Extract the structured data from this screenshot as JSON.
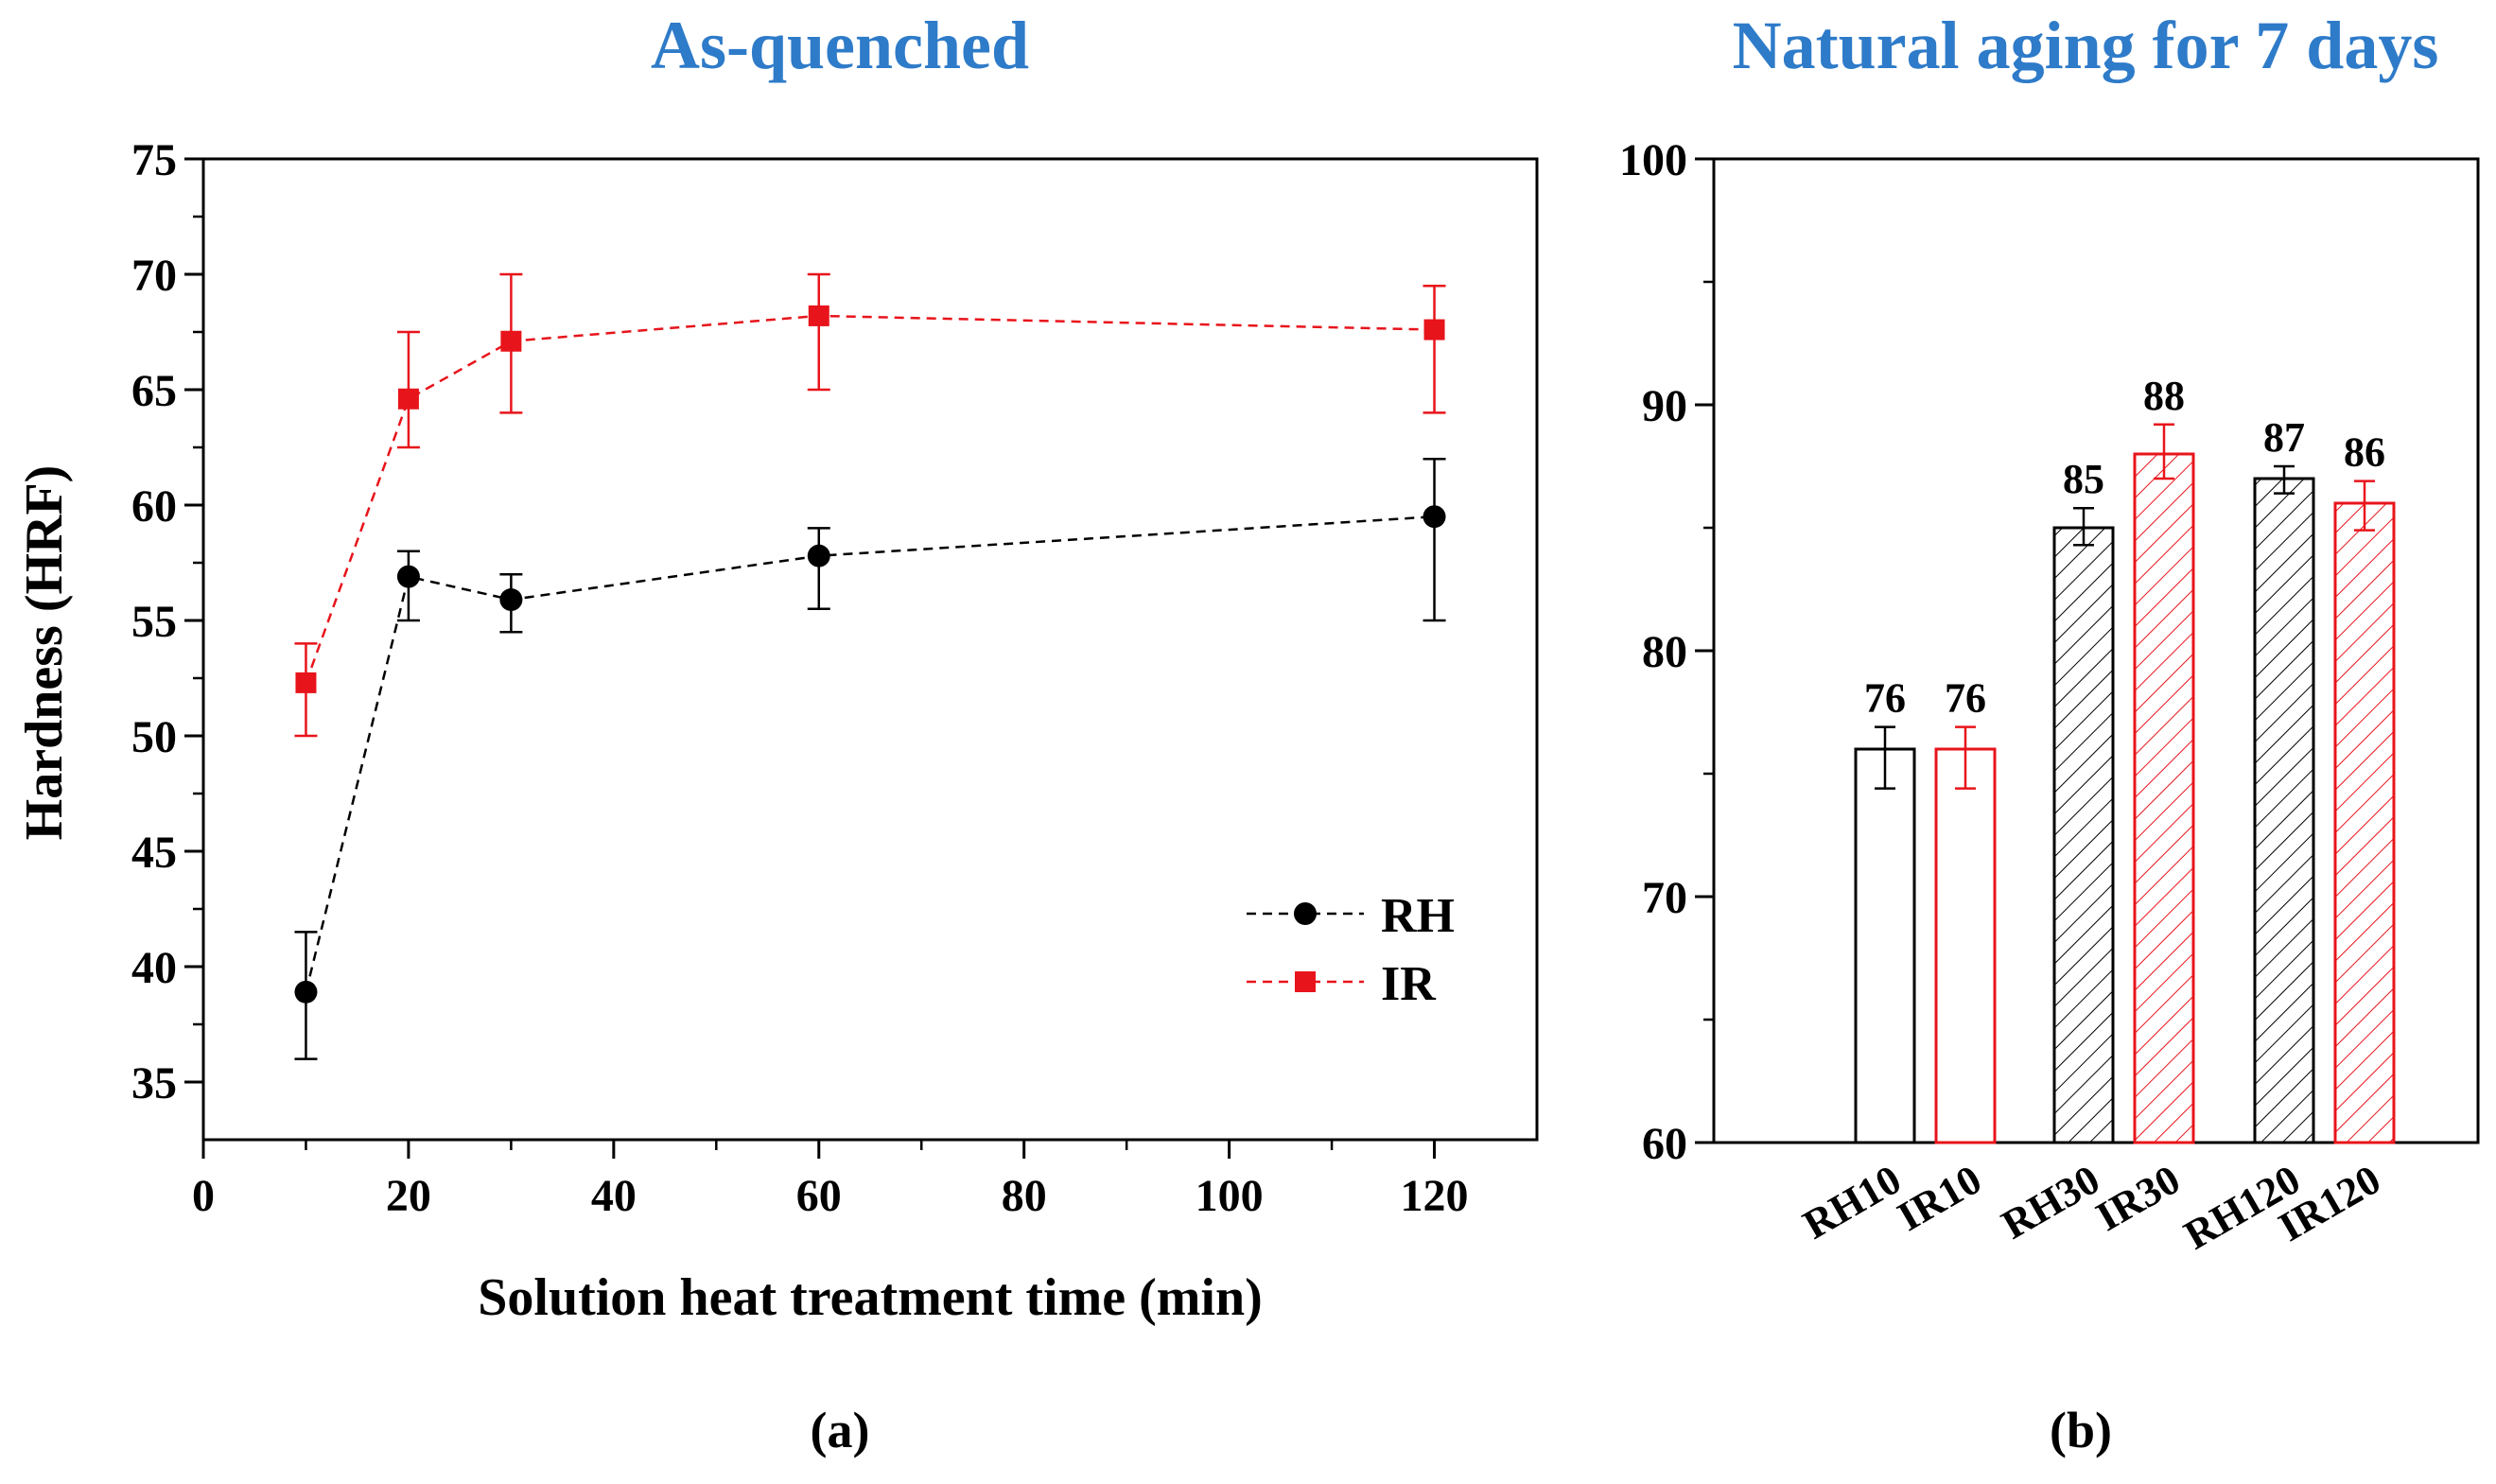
{
  "colors": {
    "title": "#2E7BC9",
    "rh": "#000000",
    "ir": "#E8141B",
    "axis": "#000000"
  },
  "chart_data": [
    {
      "panel_label": "(a)",
      "type": "line",
      "title": "As-quenched",
      "xlabel": "Solution heat treatment time (min)",
      "ylabel": "Hardness (HRF)",
      "xlim": [
        0,
        130
      ],
      "ylim": [
        32.5,
        75
      ],
      "xticks": [
        0,
        20,
        40,
        60,
        80,
        100,
        120
      ],
      "yticks": [
        35,
        40,
        45,
        50,
        55,
        60,
        65,
        70,
        75
      ],
      "grid": false,
      "legend_position": "bottom-right",
      "x": [
        10,
        20,
        30,
        60,
        120
      ],
      "series": [
        {
          "name": "RH",
          "marker": "circle",
          "line": "dashed",
          "color": "#000000",
          "values": [
            38.9,
            56.9,
            55.9,
            57.8,
            59.5
          ],
          "err_low": [
            36.0,
            55.0,
            54.5,
            55.5,
            55.0
          ],
          "err_high": [
            41.5,
            58.0,
            57.0,
            59.0,
            62.0
          ]
        },
        {
          "name": "IR",
          "marker": "square",
          "line": "dashed",
          "color": "#E8141B",
          "values": [
            52.3,
            64.6,
            67.1,
            68.2,
            67.6
          ],
          "err_low": [
            50.0,
            62.5,
            64.0,
            65.0,
            64.0
          ],
          "err_high": [
            54.0,
            67.5,
            70.0,
            70.0,
            69.5
          ]
        }
      ]
    },
    {
      "panel_label": "(b)",
      "type": "bar",
      "title": "Natural aging for 7 days",
      "ylim": [
        60,
        100
      ],
      "yticks": [
        60,
        70,
        80,
        90,
        100
      ],
      "grid": false,
      "categories": [
        "RH10",
        "IR10",
        "RH30",
        "IR30",
        "RH120",
        "IR120"
      ],
      "values": [
        76,
        76,
        85,
        88,
        87,
        86
      ],
      "value_labels": [
        "76",
        "76",
        "85",
        "88",
        "87",
        "86"
      ],
      "err_low": [
        74.4,
        74.4,
        84.3,
        87.0,
        86.4,
        84.9
      ],
      "err_high": [
        76.9,
        76.9,
        85.8,
        89.2,
        87.5,
        86.9
      ],
      "bar_colors": [
        "#000000",
        "#E8141B",
        "#000000",
        "#E8141B",
        "#000000",
        "#E8141B"
      ],
      "bar_fill": [
        "none",
        "none",
        "hatched",
        "hatched",
        "hatched",
        "hatched"
      ]
    }
  ]
}
